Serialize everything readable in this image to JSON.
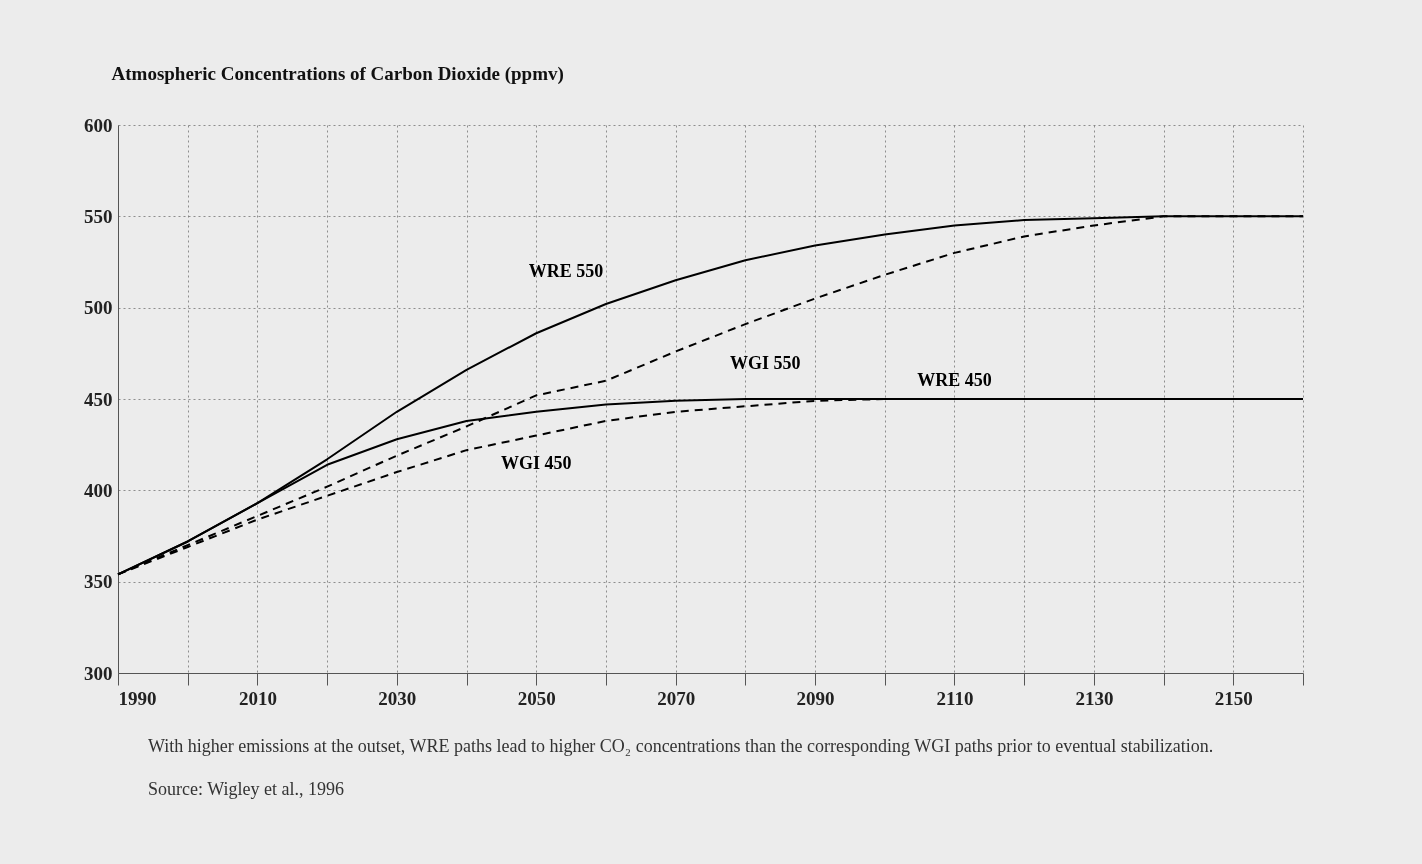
{
  "chart_data": {
    "type": "line",
    "title": "Atmospheric Concentrations of Carbon Dioxide (ppmv)",
    "x": [
      1990,
      2000,
      2010,
      2020,
      2030,
      2040,
      2050,
      2060,
      2070,
      2080,
      2090,
      2100,
      2110,
      2120,
      2130,
      2140,
      2150,
      2160
    ],
    "series": [
      {
        "name": "WRE 550",
        "color": "#000000",
        "line_style": "solid",
        "values": [
          354,
          372,
          393,
          417,
          443,
          466,
          486,
          502,
          515,
          526,
          534,
          540,
          545,
          548,
          549,
          550,
          550,
          550
        ]
      },
      {
        "name": "WGI 550",
        "color": "#000000",
        "line_style": "dashed",
        "values": [
          354,
          370,
          386,
          402,
          419,
          435,
          452,
          460,
          476,
          491,
          505,
          518,
          530,
          539,
          545,
          550,
          550,
          550
        ]
      },
      {
        "name": "WRE 450",
        "color": "#000000",
        "line_style": "solid",
        "values": [
          354,
          372,
          393,
          414,
          428,
          438,
          443,
          447,
          449,
          450,
          450,
          450,
          450,
          450,
          450,
          450,
          450,
          450
        ]
      },
      {
        "name": "WGI 450",
        "color": "#000000",
        "line_style": "dashed",
        "values": [
          354,
          369,
          384,
          397,
          410,
          422,
          430,
          438,
          443,
          446,
          449,
          450,
          450,
          450,
          450,
          450,
          450,
          450
        ]
      }
    ],
    "xlim": [
      1990,
      2160
    ],
    "xticks": [
      1990,
      {
        "value": 2000,
        "label": null
      },
      2010,
      {
        "value": 2020,
        "label": null
      },
      2030,
      {
        "value": 2040,
        "label": null
      },
      2050,
      {
        "value": 2060,
        "label": null
      },
      2070,
      {
        "value": 2080,
        "label": null
      },
      2090,
      {
        "value": 2100,
        "label": null
      },
      2110,
      {
        "value": 2120,
        "label": null
      },
      2130,
      {
        "value": 2140,
        "label": null
      },
      2150,
      {
        "value": 2160,
        "label": null
      }
    ],
    "ylim": [
      300,
      600
    ],
    "yticks": [
      300,
      350,
      400,
      450,
      500,
      550,
      600
    ],
    "grid": true,
    "marker": "none",
    "annotations": [
      "With higher emissions at the outset, WRE paths lead to higher CO₂ concentrations than the corresponding WGI paths prior to eventual stabilization.",
      "Source: Wigley et al., 1996"
    ]
  }
}
